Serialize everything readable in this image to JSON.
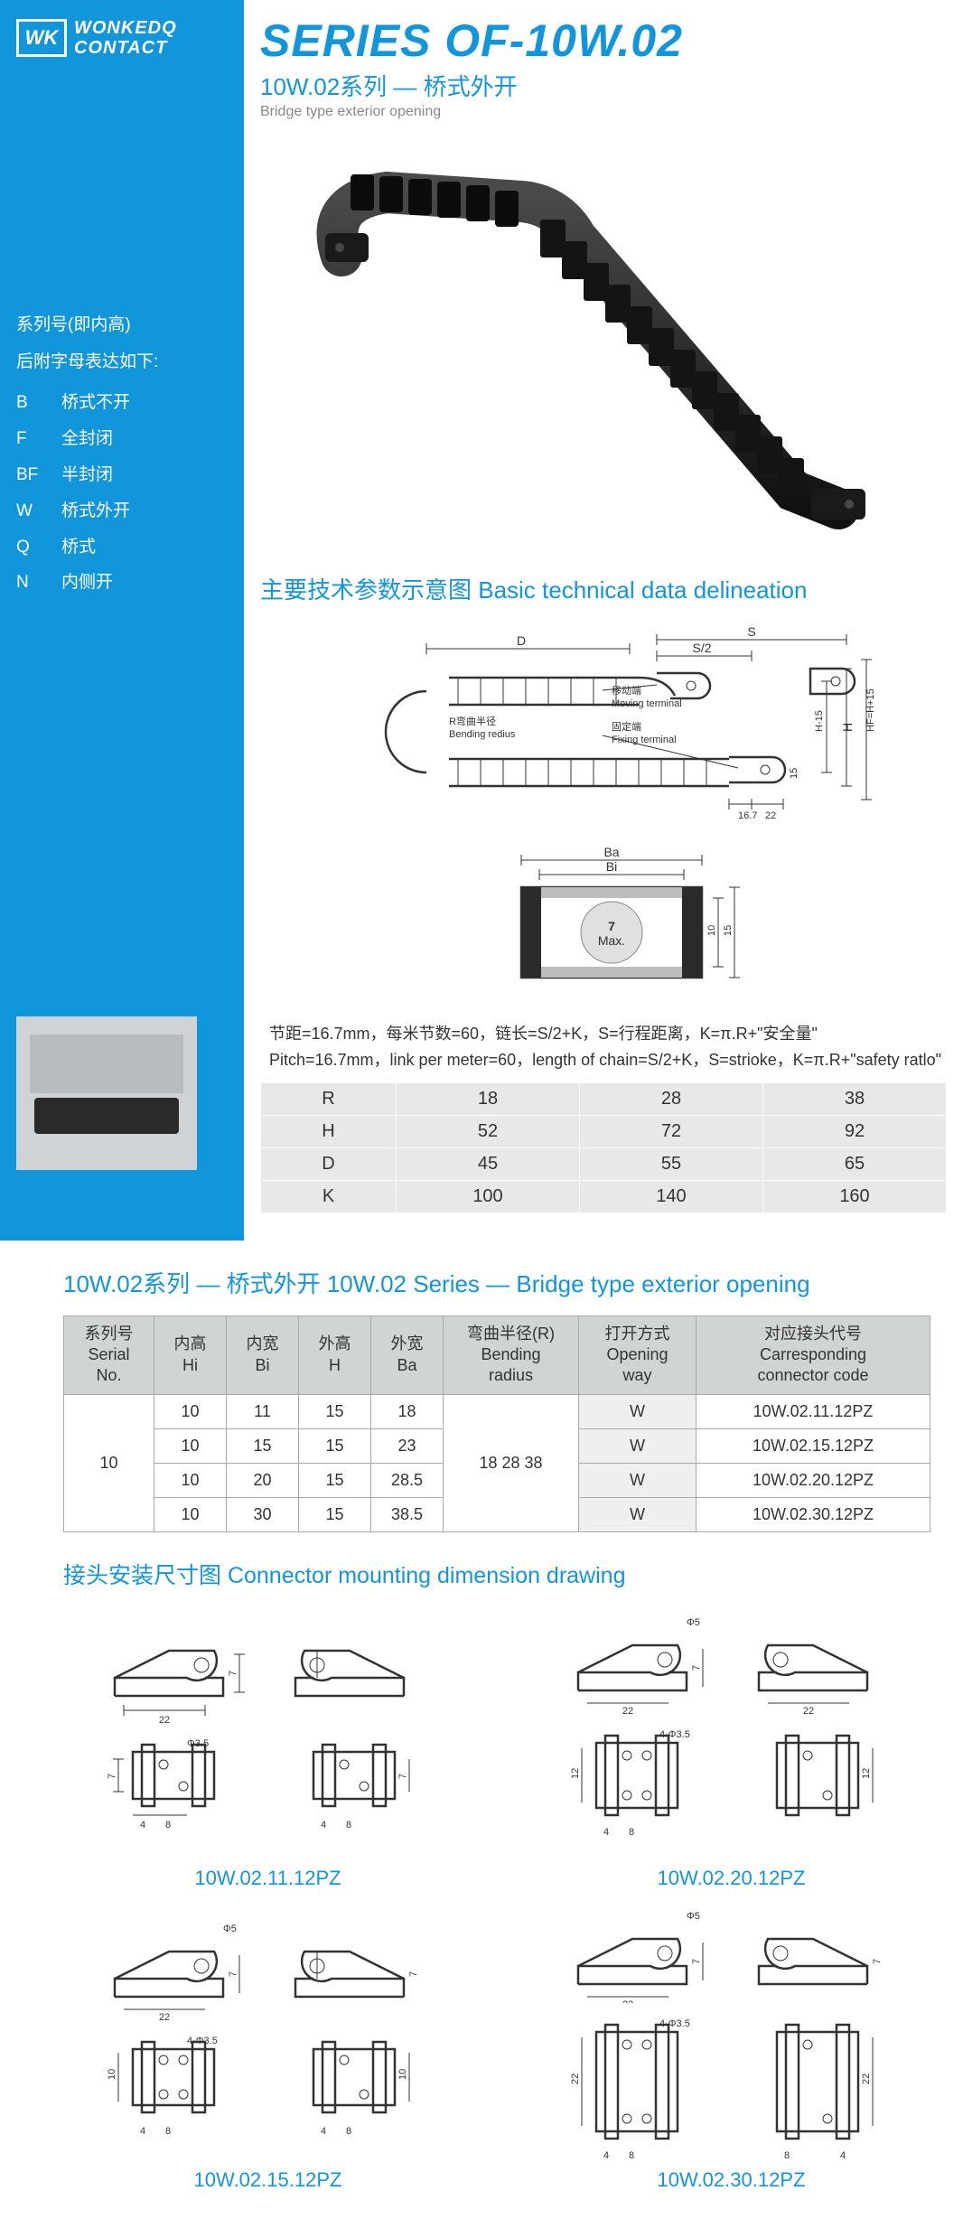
{
  "logo": {
    "mark": "WK",
    "line1": "WONKEDQ",
    "line2": "CONTACT"
  },
  "title": {
    "series": "SERIES OF-10W.02",
    "sub": "10W.02系列 — 桥式外开",
    "en": "Bridge type exterior opening"
  },
  "sidebar": {
    "label1": "系列号(即内高)",
    "label2": "后附字母表达如下:",
    "legend": [
      {
        "code": "B",
        "desc": "桥式不开"
      },
      {
        "code": "F",
        "desc": "全封闭"
      },
      {
        "code": "BF",
        "desc": "半封闭"
      },
      {
        "code": "W",
        "desc": "桥式外开"
      },
      {
        "code": "Q",
        "desc": "桥式"
      },
      {
        "code": "N",
        "desc": "内侧开"
      }
    ]
  },
  "tech_title": "主要技术参数示意图  Basic technical data delineation",
  "diagram_labels": {
    "D": "D",
    "S": "S",
    "S2": "S/2",
    "moving_cn": "移动端",
    "moving_en": "Moving terminal",
    "fixing_cn": "固定端",
    "fixing_en": "Fixing terminal",
    "radius_cn": "R弯曲半径",
    "radius_en": "Bending redius",
    "H": "H",
    "H15": "H-15",
    "HF": "HF=H+15",
    "d167": "16.7",
    "d22": "22",
    "d15": "15",
    "Ba": "Ba",
    "Bi": "Bi",
    "max7": "7",
    "maxlbl": "Max.",
    "d10": "10"
  },
  "formula": {
    "cn": "节距=16.7mm，每米节数=60，链长=S/2+K，S=行程距离，K=π.R+\"安全量\"",
    "en": "Pitch=16.7mm，link per meter=60，length of chain=S/2+K，S=strioke，K=π.R+\"safety ratlo\""
  },
  "data_table": {
    "rows": [
      {
        "label": "R",
        "v1": "18",
        "v2": "28",
        "v3": "38"
      },
      {
        "label": "H",
        "v1": "52",
        "v2": "72",
        "v3": "92"
      },
      {
        "label": "D",
        "v1": "45",
        "v2": "55",
        "v3": "65"
      },
      {
        "label": "K",
        "v1": "100",
        "v2": "140",
        "v3": "160"
      }
    ]
  },
  "section2_title": "10W.02系列 — 桥式外开 10W.02 Series  —  Bridge type exterior opening",
  "spec_headers": {
    "serial": "系列号\nSerial\nNo.",
    "hi": "内高\nHi",
    "bi": "内宽\nBi",
    "h": "外高\nH",
    "ba": "外宽\nBa",
    "r": "弯曲半径(R)\nBending\nradius",
    "open": "打开方式\nOpening\nway",
    "conn": "对应接头代号\nCarresponding\nconnector code"
  },
  "spec_serial": "10",
  "spec_r": "18  28  38",
  "spec_rows": [
    {
      "hi": "10",
      "bi": "11",
      "h": "15",
      "ba": "18",
      "open": "W",
      "conn": "10W.02.11.12PZ"
    },
    {
      "hi": "10",
      "bi": "15",
      "h": "15",
      "ba": "23",
      "open": "W",
      "conn": "10W.02.15.12PZ"
    },
    {
      "hi": "10",
      "bi": "20",
      "h": "15",
      "ba": "28.5",
      "open": "W",
      "conn": "10W.02.20.12PZ"
    },
    {
      "hi": "10",
      "bi": "30",
      "h": "15",
      "ba": "38.5",
      "open": "W",
      "conn": "10W.02.30.12PZ"
    }
  ],
  "conn_title": "接头安装尺寸图 Connector mounting dimension drawing",
  "connectors": [
    {
      "label": "10W.02.11.12PZ",
      "phi_top": "Φ3.5",
      "phi_bot": "Φ3.5",
      "w": "22",
      "h_top": "7",
      "h_bot": "7",
      "a": "4",
      "b": "8"
    },
    {
      "label": "10W.02.20.12PZ",
      "phi_top": "Φ5",
      "phi_bot": "4-Φ3.5",
      "w": "22",
      "h_top": "7",
      "h_bot": "12",
      "a": "4",
      "b": "8"
    },
    {
      "label": "10W.02.15.12PZ",
      "phi_top": "Φ5",
      "phi_bot": "4-Φ3.5",
      "w": "22",
      "h_top": "7",
      "h_bot": "10",
      "a": "4",
      "b": "8"
    },
    {
      "label": "10W.02.30.12PZ",
      "phi_top": "Φ5",
      "phi_bot": "4-Φ3.5",
      "w": "22",
      "h_top": "7",
      "h_bot": "22",
      "a": "4",
      "b": "8"
    }
  ],
  "colors": {
    "brand": "#1296db",
    "sidebar_bg": "#1296db",
    "table_bg": "#e8e8e8",
    "spec_header_bg": "#d0d4d4"
  }
}
